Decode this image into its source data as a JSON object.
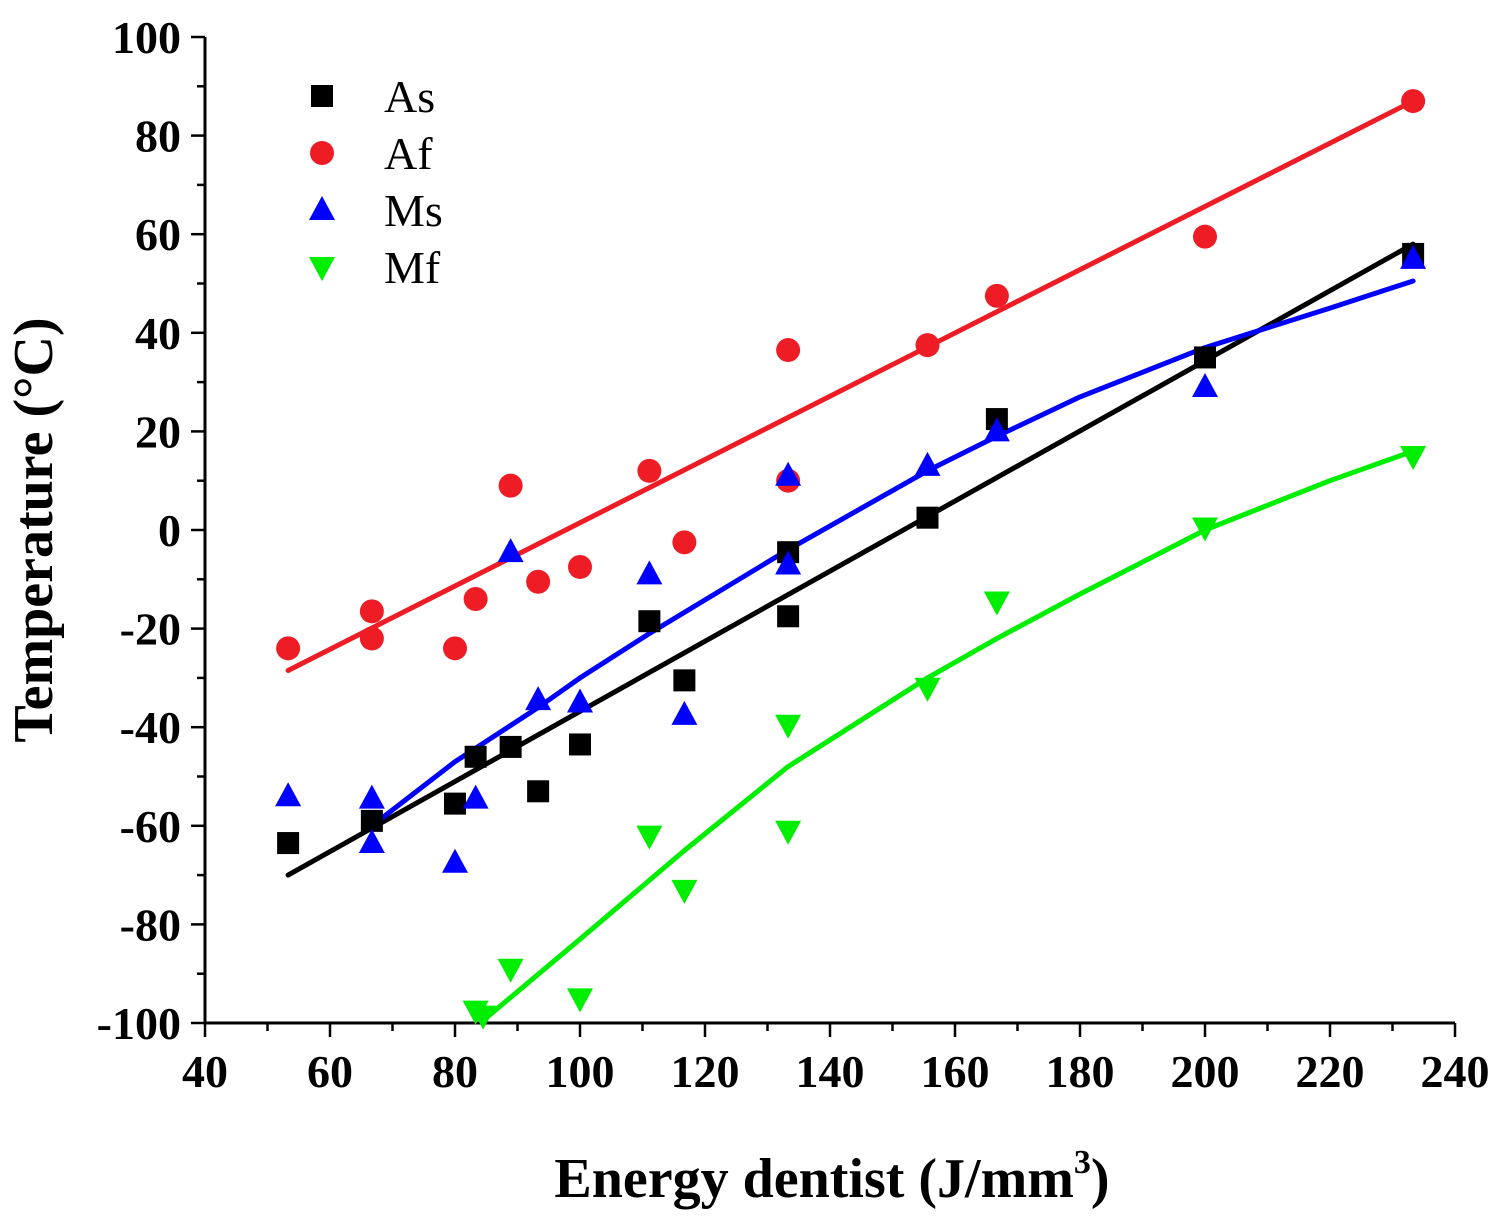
{
  "chart_data": {
    "type": "scatter",
    "title": "",
    "xlabel": "Energy dentist (J/mm",
    "xlabel_superscript": "3",
    "xlabel_close": ")",
    "ylabel": "Temperature (°C)",
    "xlim": [
      40,
      240
    ],
    "ylim": [
      -100,
      100
    ],
    "xticks": [
      "40",
      "60",
      "80",
      "100",
      "120",
      "140",
      "160",
      "180",
      "200",
      "220",
      "240"
    ],
    "yticks": [
      "-100",
      "-80",
      "-60",
      "-40",
      "-20",
      "0",
      "20",
      "40",
      "60",
      "80",
      "100"
    ],
    "legend_position": "top-left",
    "series": [
      {
        "name": "As",
        "marker": "square",
        "color": "#000000",
        "points": [
          [
            53.3,
            -63.5
          ],
          [
            66.7,
            -59
          ],
          [
            80,
            -55.5
          ],
          [
            83.3,
            -46
          ],
          [
            88.9,
            -44
          ],
          [
            93.3,
            -53
          ],
          [
            100,
            -43.5
          ],
          [
            111.1,
            -18.5
          ],
          [
            116.7,
            -30.5
          ],
          [
            133.3,
            -4.5
          ],
          [
            133.3,
            -17.5
          ],
          [
            155.6,
            2.5
          ],
          [
            166.7,
            22.5
          ],
          [
            200,
            35
          ],
          [
            233.3,
            56
          ]
        ],
        "fit": [
          [
            53.3,
            -70
          ],
          [
            233.3,
            58
          ]
        ]
      },
      {
        "name": "Af",
        "marker": "circle",
        "color": "#ee1c24",
        "points": [
          [
            53.3,
            -24
          ],
          [
            66.7,
            -16.5
          ],
          [
            66.7,
            -22
          ],
          [
            80,
            -24
          ],
          [
            83.3,
            -14
          ],
          [
            88.9,
            9
          ],
          [
            93.3,
            -10.5
          ],
          [
            100,
            -7.5
          ],
          [
            111.1,
            12
          ],
          [
            116.7,
            -2.5
          ],
          [
            133.3,
            36.5
          ],
          [
            133.3,
            10
          ],
          [
            155.6,
            37.5
          ],
          [
            166.7,
            47.5
          ],
          [
            200,
            59.5
          ],
          [
            233.3,
            87
          ]
        ],
        "fit": [
          [
            53.3,
            -28.5
          ],
          [
            233.3,
            87
          ]
        ]
      },
      {
        "name": "Ms",
        "marker": "triangle-up",
        "color": "#0000ff",
        "points": [
          [
            53.3,
            -54
          ],
          [
            66.7,
            -54.5
          ],
          [
            66.7,
            -63.5
          ],
          [
            80,
            -67.5
          ],
          [
            83.3,
            -54.5
          ],
          [
            88.9,
            -4.5
          ],
          [
            93.3,
            -34.5
          ],
          [
            100,
            -35
          ],
          [
            111.1,
            -9
          ],
          [
            116.7,
            -37.5
          ],
          [
            133.3,
            11
          ],
          [
            133.3,
            -7
          ],
          [
            155.6,
            13
          ],
          [
            166.7,
            20
          ],
          [
            200,
            29
          ],
          [
            233.3,
            55
          ]
        ],
        "fit": [
          [
            66.7,
            -60
          ],
          [
            80,
            -47
          ],
          [
            93.3,
            -36
          ],
          [
            100,
            -30
          ],
          [
            111.1,
            -21
          ],
          [
            133.3,
            -4
          ],
          [
            155.6,
            12
          ],
          [
            166.7,
            19
          ],
          [
            180,
            27
          ],
          [
            200,
            37
          ],
          [
            220,
            45
          ],
          [
            233.3,
            50.5
          ]
        ]
      },
      {
        "name": "Mf",
        "marker": "triangle-down",
        "color": "#00ee00",
        "points": [
          [
            83.3,
            -97.5
          ],
          [
            84.5,
            -98.5
          ],
          [
            88.9,
            -89
          ],
          [
            100,
            -95
          ],
          [
            111.1,
            -62
          ],
          [
            116.7,
            -73
          ],
          [
            133.3,
            -39.5
          ],
          [
            133.3,
            -61
          ],
          [
            155.6,
            -32
          ],
          [
            166.7,
            -14.5
          ],
          [
            200,
            0.5
          ],
          [
            233.3,
            15
          ]
        ],
        "fit": [
          [
            84.5,
            -99.5
          ],
          [
            100,
            -83
          ],
          [
            116.7,
            -65
          ],
          [
            133.3,
            -48
          ],
          [
            155.6,
            -30
          ],
          [
            166.7,
            -22
          ],
          [
            180,
            -13
          ],
          [
            200,
            0
          ],
          [
            220,
            10
          ],
          [
            233.3,
            16
          ]
        ]
      }
    ]
  }
}
